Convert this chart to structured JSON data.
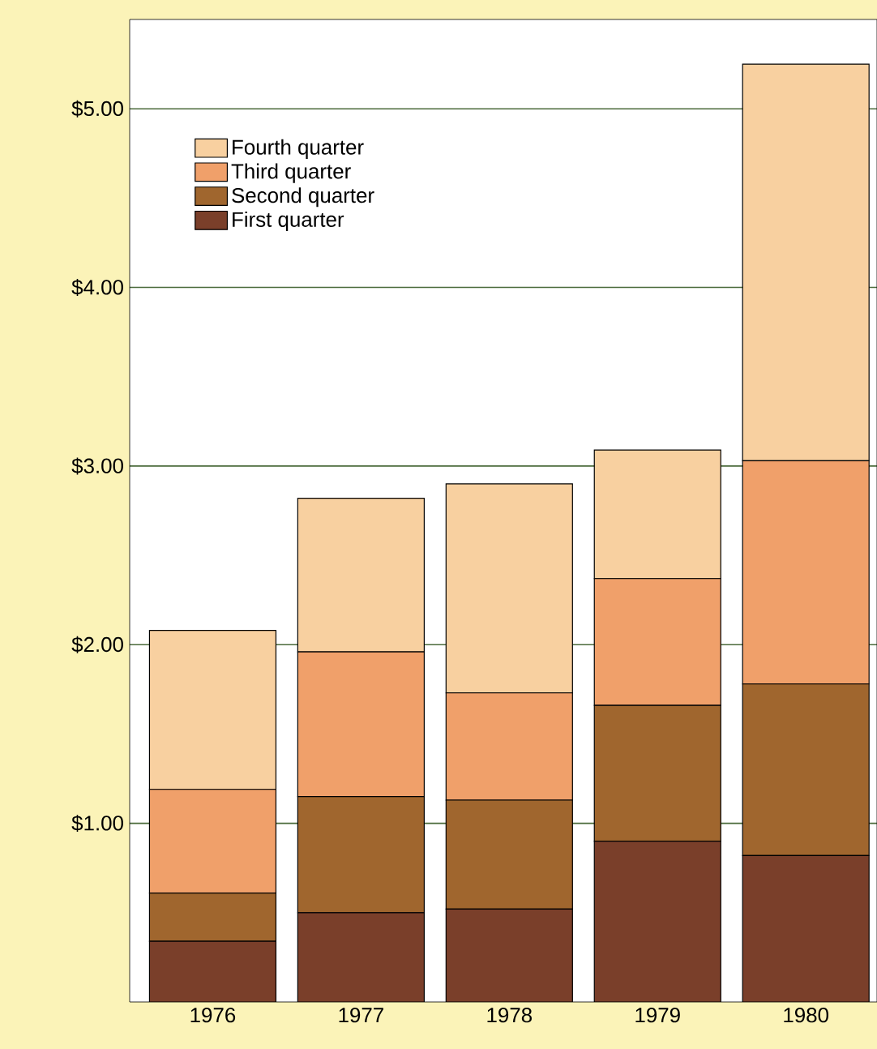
{
  "chart_data": {
    "type": "bar",
    "stacked": true,
    "categories": [
      "1976",
      "1977",
      "1978",
      "1979",
      "1980"
    ],
    "series": [
      {
        "name": "First quarter",
        "color": "#7a3f2a",
        "values": [
          0.34,
          0.5,
          0.52,
          0.9,
          0.82
        ]
      },
      {
        "name": "Second quarter",
        "color": "#a0662e",
        "values": [
          0.27,
          0.65,
          0.61,
          0.76,
          0.96
        ]
      },
      {
        "name": "Third quarter",
        "color": "#f0a06a",
        "values": [
          0.58,
          0.81,
          0.6,
          0.71,
          1.25
        ]
      },
      {
        "name": "Fourth quarter",
        "color": "#f8d0a0",
        "values": [
          0.89,
          0.86,
          1.17,
          0.72,
          2.22
        ]
      }
    ],
    "ylim": [
      0,
      5.5
    ],
    "yticks": [
      {
        "value": 1,
        "label": "$1.00"
      },
      {
        "value": 2,
        "label": "$2.00"
      },
      {
        "value": 3,
        "label": "$3.00"
      },
      {
        "value": 4,
        "label": "$4.00"
      },
      {
        "value": 5,
        "label": "$5.00"
      }
    ],
    "grid": "y",
    "legend": "top left"
  }
}
